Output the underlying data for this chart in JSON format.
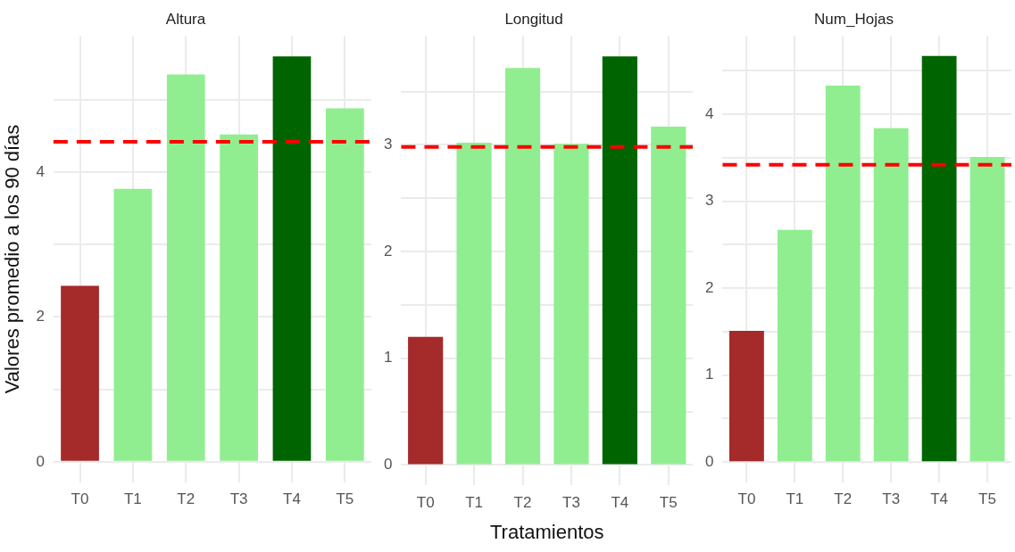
{
  "chart_data": [
    {
      "type": "bar",
      "title": "Altura",
      "ylabel": "Valores promedio a los 90 días",
      "categories": [
        "T0",
        "T1",
        "T2",
        "T3",
        "T4",
        "T5"
      ],
      "values": [
        2.43,
        3.77,
        5.35,
        4.52,
        5.6,
        4.88
      ],
      "colors": [
        "#a52a2a",
        "#90ee90",
        "#90ee90",
        "#90ee90",
        "#006400",
        "#90ee90"
      ],
      "ylim": [
        -0.28,
        5.88
      ],
      "yticks": [
        0,
        {
          "value": 1,
          "label": null
        },
        2,
        {
          "value": 3,
          "label": null
        },
        4,
        {
          "value": 5,
          "label": null
        }
      ],
      "grid": true,
      "ref_lines": [
        {
          "axis": "y",
          "value": 4.42,
          "color": "#ff0000",
          "line_style": "dashed"
        }
      ]
    },
    {
      "type": "bar",
      "title": "Longitud",
      "xlabel": "Tratamientos",
      "categories": [
        "T0",
        "T1",
        "T2",
        "T3",
        "T4",
        "T5"
      ],
      "values": [
        1.2,
        3.02,
        3.72,
        3.01,
        3.83,
        3.17
      ],
      "colors": [
        "#a52a2a",
        "#90ee90",
        "#90ee90",
        "#90ee90",
        "#006400",
        "#90ee90"
      ],
      "ylim": [
        -0.19,
        4.02
      ],
      "yticks": [
        0,
        {
          "value": 0.5,
          "label": null
        },
        1,
        {
          "value": 1.5,
          "label": null
        },
        2,
        {
          "value": 2.5,
          "label": null
        },
        3,
        {
          "value": 3.5,
          "label": null
        }
      ],
      "grid": true,
      "ref_lines": [
        {
          "axis": "y",
          "value": 2.98,
          "color": "#ff0000",
          "line_style": "dashed"
        }
      ]
    },
    {
      "type": "bar",
      "title": "Num_Hojas",
      "categories": [
        "T0",
        "T1",
        "T2",
        "T3",
        "T4",
        "T5"
      ],
      "values": [
        1.51,
        2.67,
        4.33,
        3.84,
        4.67,
        3.51
      ],
      "colors": [
        "#a52a2a",
        "#90ee90",
        "#90ee90",
        "#90ee90",
        "#006400",
        "#90ee90"
      ],
      "ylim": [
        -0.23,
        4.9
      ],
      "yticks": [
        0,
        {
          "value": 0.5,
          "label": null
        },
        1,
        {
          "value": 1.5,
          "label": null
        },
        2,
        {
          "value": 2.5,
          "label": null
        },
        3,
        {
          "value": 3.5,
          "label": null
        },
        4,
        {
          "value": 4.5,
          "label": null
        }
      ],
      "grid": true,
      "ref_lines": [
        {
          "axis": "y",
          "value": 3.42,
          "color": "#ff0000",
          "line_style": "dashed"
        }
      ]
    }
  ]
}
